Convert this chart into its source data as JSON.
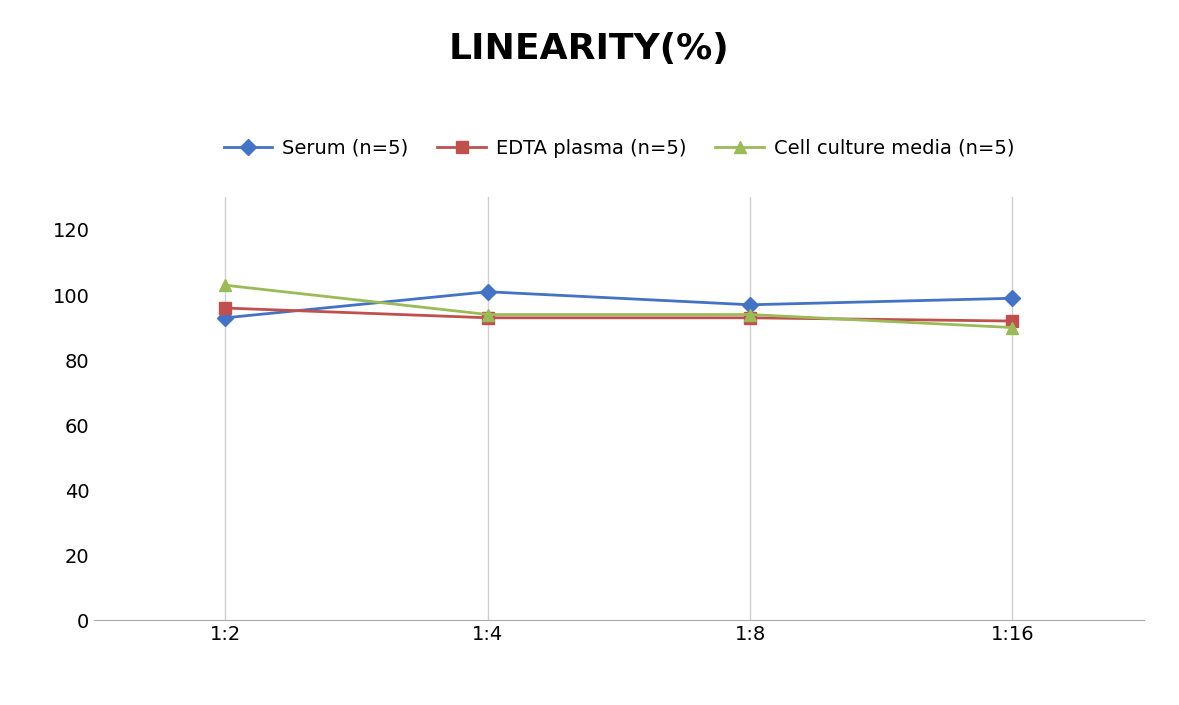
{
  "title": "LINEARITY(%)",
  "title_fontsize": 26,
  "title_fontweight": "bold",
  "x_labels": [
    "1:2",
    "1:4",
    "1:8",
    "1:16"
  ],
  "x_positions": [
    0,
    1,
    2,
    3
  ],
  "series": [
    {
      "label": "Serum (n=5)",
      "values": [
        93,
        101,
        97,
        99
      ],
      "color": "#4472C4",
      "marker": "D",
      "markersize": 8,
      "linewidth": 2
    },
    {
      "label": "EDTA plasma (n=5)",
      "values": [
        96,
        93,
        93,
        92
      ],
      "color": "#C0504D",
      "marker": "s",
      "markersize": 8,
      "linewidth": 2
    },
    {
      "label": "Cell culture media (n=5)",
      "values": [
        103,
        94,
        94,
        90
      ],
      "color": "#9BBB59",
      "marker": "^",
      "markersize": 8,
      "linewidth": 2
    }
  ],
  "ylim": [
    0,
    130
  ],
  "yticks": [
    0,
    20,
    40,
    60,
    80,
    100,
    120
  ],
  "grid_color": "#D0D0D0",
  "background_color": "#FFFFFF",
  "legend_fontsize": 14,
  "tick_fontsize": 14,
  "figsize": [
    11.79,
    7.05
  ],
  "dpi": 100
}
